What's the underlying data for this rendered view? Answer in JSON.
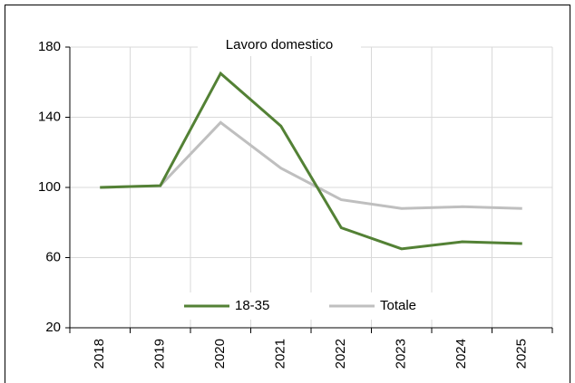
{
  "chart_data": {
    "type": "line",
    "title": "Lavoro domestico",
    "categories": [
      "2018",
      "2019",
      "2020",
      "2021",
      "2022",
      "2023",
      "2024",
      "2025"
    ],
    "series": [
      {
        "name": "18-35",
        "color": "#538135",
        "values": [
          100,
          101,
          165,
          135,
          77,
          65,
          69,
          68
        ]
      },
      {
        "name": "Totale",
        "color": "#bfbfbf",
        "values": [
          100,
          101,
          137,
          111,
          93,
          88,
          89,
          88
        ]
      }
    ],
    "ylim": [
      20,
      180
    ],
    "yticks": [
      20,
      60,
      100,
      140,
      180
    ],
    "grid": true,
    "legend": "bottom"
  }
}
